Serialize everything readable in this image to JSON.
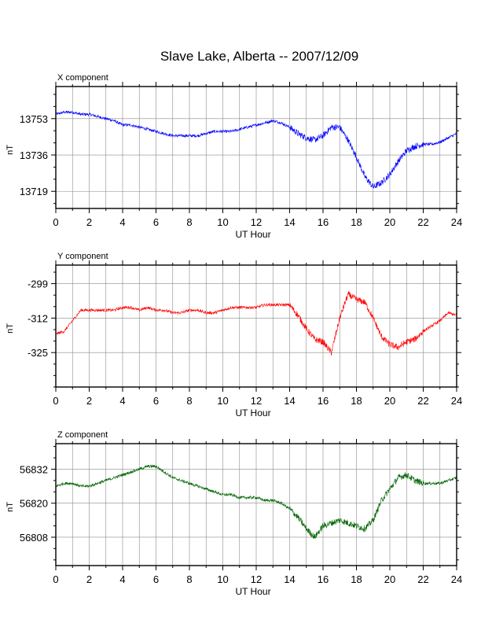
{
  "title": "Slave Lake, Alberta -- 2007/12/09",
  "chart_data": [
    {
      "type": "line",
      "panel_title": "X component",
      "xlabel": "UT Hour",
      "ylabel": "nT",
      "color": "#0000ff",
      "xlim": [
        0,
        24
      ],
      "xticks": [
        0,
        2,
        4,
        6,
        8,
        10,
        12,
        14,
        16,
        18,
        20,
        22,
        24
      ],
      "yticks": [
        13753,
        13736,
        13719
      ],
      "ylim": [
        13711,
        13768
      ],
      "grid": true,
      "x": [
        0,
        0.5,
        1,
        1.5,
        2,
        2.5,
        3,
        3.5,
        4,
        4.5,
        5,
        5.5,
        6,
        6.5,
        7,
        7.5,
        8,
        8.5,
        9,
        9.5,
        10,
        10.5,
        11,
        11.5,
        12,
        12.5,
        13,
        13.5,
        14,
        14.5,
        15,
        15.5,
        16,
        16.5,
        17,
        17.5,
        18,
        18.5,
        19,
        19.5,
        20,
        20.5,
        21,
        21.5,
        22,
        22.5,
        23,
        23.5,
        24
      ],
      "y": [
        13755,
        13756,
        13756,
        13755,
        13755,
        13754,
        13753,
        13752,
        13750,
        13750,
        13749,
        13748,
        13747,
        13746,
        13745,
        13745,
        13745,
        13745,
        13746,
        13747,
        13747,
        13747,
        13748,
        13749,
        13750,
        13751,
        13752,
        13751,
        13749,
        13746,
        13744,
        13743,
        13745,
        13749,
        13749,
        13743,
        13735,
        13726,
        13721,
        13723,
        13727,
        13733,
        13738,
        13740,
        13741,
        13741,
        13742,
        13744,
        13746
      ]
    },
    {
      "type": "line",
      "panel_title": "Y component",
      "xlabel": "UT Hour",
      "ylabel": "nT",
      "color": "#ff0000",
      "xlim": [
        0,
        24
      ],
      "xticks": [
        0,
        2,
        4,
        6,
        8,
        10,
        12,
        14,
        16,
        18,
        20,
        22,
        24
      ],
      "yticks": [
        -299,
        -312,
        -325
      ],
      "ylim": [
        -338,
        -292
      ],
      "grid": true,
      "x": [
        0,
        0.5,
        1,
        1.5,
        2,
        2.5,
        3,
        3.5,
        4,
        4.5,
        5,
        5.5,
        6,
        6.5,
        7,
        7.5,
        8,
        8.5,
        9,
        9.5,
        10,
        10.5,
        11,
        11.5,
        12,
        12.5,
        13,
        13.5,
        14,
        14.5,
        15,
        15.5,
        16,
        16.5,
        17,
        17.5,
        18,
        18.5,
        19,
        19.5,
        20,
        20.5,
        21,
        21.5,
        22,
        22.5,
        23,
        23.5,
        24
      ],
      "y": [
        -318,
        -317,
        -313,
        -309,
        -309,
        -309,
        -309,
        -309,
        -308,
        -308,
        -309,
        -308,
        -309,
        -309,
        -310,
        -310,
        -309,
        -309,
        -310,
        -310,
        -309,
        -308,
        -308,
        -308,
        -308,
        -307,
        -307,
        -307,
        -307,
        -311,
        -316,
        -320,
        -321,
        -325,
        -312,
        -303,
        -305,
        -306,
        -312,
        -319,
        -322,
        -323,
        -321,
        -320,
        -317,
        -315,
        -313,
        -310,
        -311
      ]
    },
    {
      "type": "line",
      "panel_title": "Z component",
      "xlabel": "UT Hour",
      "ylabel": "nT",
      "color": "#006400",
      "xlim": [
        0,
        24
      ],
      "xticks": [
        0,
        2,
        4,
        6,
        8,
        10,
        12,
        14,
        16,
        18,
        20,
        22,
        24
      ],
      "yticks": [
        56832,
        56820,
        56808
      ],
      "ylim": [
        56798,
        56841
      ],
      "grid": true,
      "x": [
        0,
        0.5,
        1,
        1.5,
        2,
        2.5,
        3,
        3.5,
        4,
        4.5,
        5,
        5.5,
        6,
        6.5,
        7,
        7.5,
        8,
        8.5,
        9,
        9.5,
        10,
        10.5,
        11,
        11.5,
        12,
        12.5,
        13,
        13.5,
        14,
        14.5,
        15,
        15.5,
        16,
        16.5,
        17,
        17.5,
        18,
        18.5,
        19,
        19.5,
        20,
        20.5,
        21,
        21.5,
        22,
        22.5,
        23,
        23.5,
        24
      ],
      "y": [
        56826,
        56827,
        56827,
        56826,
        56826,
        56827,
        56828,
        56829,
        56830,
        56831,
        56832,
        56833,
        56833,
        56831,
        56829,
        56828,
        56827,
        56826,
        56825,
        56824,
        56823,
        56823,
        56822,
        56822,
        56822,
        56821,
        56821,
        56820,
        56818,
        56815,
        56811,
        56808,
        56812,
        56813,
        56814,
        56813,
        56812,
        56811,
        56814,
        56821,
        56825,
        56829,
        56830,
        56828,
        56827,
        56827,
        56827,
        56828,
        56829
      ]
    }
  ]
}
